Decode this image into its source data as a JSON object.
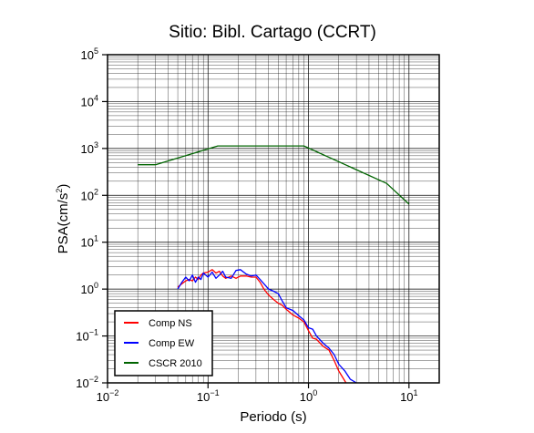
{
  "chart_data": {
    "type": "line",
    "title": "Sitio: Bibl. Cartago (CCRT)",
    "xlabel": "Periodo (s)",
    "ylabel_base": "PSA(cm/s",
    "ylabel_exp": "2",
    "ylabel_close": ")",
    "x_scale": "log",
    "y_scale": "log",
    "xlim": [
      0.01,
      20
    ],
    "ylim": [
      0.01,
      100000
    ],
    "grid": true,
    "legend_position": "bottom-left",
    "x_ticks": [
      {
        "value": 0.01,
        "base": "10",
        "exp": "−2"
      },
      {
        "value": 0.1,
        "base": "10",
        "exp": "−1"
      },
      {
        "value": 1,
        "base": "10",
        "exp": "0"
      },
      {
        "value": 10,
        "base": "10",
        "exp": "1"
      }
    ],
    "y_ticks": [
      {
        "value": 0.01,
        "base": "10",
        "exp": "−2"
      },
      {
        "value": 0.1,
        "base": "10",
        "exp": "−1"
      },
      {
        "value": 1,
        "base": "10",
        "exp": "0"
      },
      {
        "value": 10,
        "base": "10",
        "exp": "1"
      },
      {
        "value": 100,
        "base": "10",
        "exp": "2"
      },
      {
        "value": 1000,
        "base": "10",
        "exp": "3"
      },
      {
        "value": 10000,
        "base": "10",
        "exp": "4"
      },
      {
        "value": 100000,
        "base": "10",
        "exp": "5"
      }
    ],
    "series": [
      {
        "name": "Comp NS",
        "color": "#ff0000",
        "x": [
          0.05,
          0.055,
          0.06,
          0.065,
          0.07,
          0.075,
          0.08,
          0.085,
          0.09,
          0.1,
          0.11,
          0.12,
          0.13,
          0.14,
          0.15,
          0.17,
          0.19,
          0.21,
          0.24,
          0.27,
          0.3,
          0.33,
          0.36,
          0.4,
          0.45,
          0.5,
          0.55,
          0.6,
          0.7,
          0.8,
          0.9,
          1.0,
          1.1,
          1.2,
          1.4,
          1.6,
          1.8,
          2.0,
          2.3,
          2.6,
          3.0
        ],
        "y": [
          1.1,
          1.3,
          1.5,
          1.6,
          1.5,
          1.8,
          1.6,
          2.0,
          2.2,
          2.3,
          2.6,
          2.2,
          2.4,
          1.9,
          1.7,
          1.9,
          1.7,
          1.9,
          1.9,
          1.8,
          1.8,
          1.4,
          1.0,
          0.75,
          0.6,
          0.5,
          0.45,
          0.37,
          0.28,
          0.24,
          0.2,
          0.13,
          0.09,
          0.085,
          0.06,
          0.05,
          0.03,
          0.018,
          0.011,
          0.007,
          0.005
        ]
      },
      {
        "name": "Comp EW",
        "color": "#0000ff",
        "x": [
          0.05,
          0.055,
          0.06,
          0.065,
          0.07,
          0.075,
          0.08,
          0.085,
          0.09,
          0.1,
          0.11,
          0.12,
          0.13,
          0.14,
          0.15,
          0.17,
          0.19,
          0.21,
          0.24,
          0.27,
          0.3,
          0.33,
          0.36,
          0.4,
          0.45,
          0.5,
          0.55,
          0.6,
          0.7,
          0.8,
          0.9,
          1.0,
          1.1,
          1.2,
          1.4,
          1.6,
          1.8,
          2.0,
          2.3,
          2.6,
          3.0
        ],
        "y": [
          1.0,
          1.4,
          1.8,
          1.5,
          2.0,
          1.4,
          1.8,
          1.6,
          2.2,
          1.8,
          2.3,
          1.7,
          2.0,
          2.4,
          1.8,
          1.7,
          2.5,
          2.6,
          2.1,
          1.9,
          2.0,
          1.6,
          1.3,
          1.0,
          0.9,
          0.8,
          0.55,
          0.4,
          0.35,
          0.27,
          0.22,
          0.15,
          0.14,
          0.1,
          0.07,
          0.055,
          0.04,
          0.025,
          0.018,
          0.012,
          0.01
        ]
      },
      {
        "name": "CSCR 2010",
        "color": "#006400",
        "x": [
          0.02,
          0.03,
          0.125,
          0.9,
          6.0,
          10.0
        ],
        "y": [
          450,
          450,
          1130,
          1130,
          180,
          65
        ]
      }
    ]
  }
}
